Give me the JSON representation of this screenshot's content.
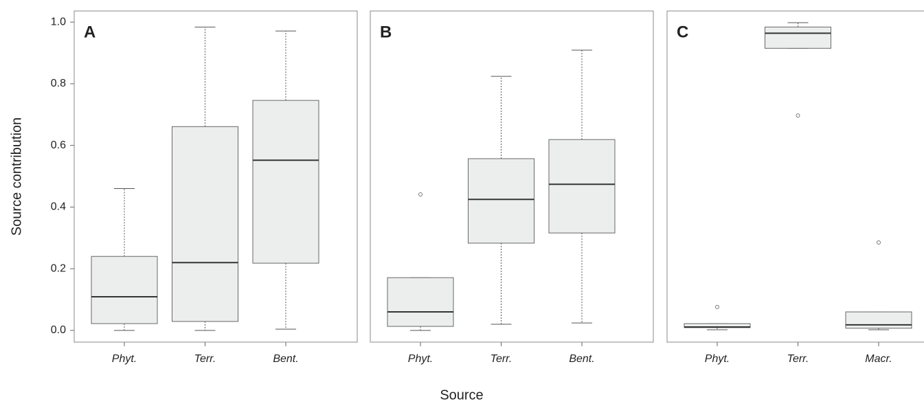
{
  "chart_data": [
    {
      "type": "box",
      "panel": "A",
      "ylabel": "Source contribution",
      "categories": [
        "Phyt.",
        "Terr.",
        "Bent."
      ],
      "boxes": [
        {
          "min": 0.0,
          "q1": 0.022,
          "median": 0.109,
          "q3": 0.24,
          "max": 0.46,
          "outliers": []
        },
        {
          "min": 0.0,
          "q1": 0.029,
          "median": 0.22,
          "q3": 0.661,
          "max": 0.984,
          "outliers": []
        },
        {
          "min": 0.004,
          "q1": 0.218,
          "median": 0.552,
          "q3": 0.746,
          "max": 0.971,
          "outliers": []
        }
      ],
      "ylim": [
        -0.038,
        1.036
      ],
      "yticks": [
        {
          "value": 0,
          "label": "0.0"
        },
        0.2,
        0.4,
        0.6,
        0.8,
        {
          "value": 1,
          "label": "1.0"
        }
      ]
    },
    {
      "type": "box",
      "panel": "B",
      "xlabel": "Source",
      "categories": [
        "Phyt.",
        "Terr.",
        "Bent."
      ],
      "boxes": [
        {
          "min": 0.0,
          "q1": 0.013,
          "median": 0.06,
          "q3": 0.171,
          "max": 0.171,
          "outliers": [
            0.441
          ]
        },
        {
          "min": 0.02,
          "q1": 0.283,
          "median": 0.425,
          "q3": 0.557,
          "max": 0.824,
          "outliers": []
        },
        {
          "min": 0.024,
          "q1": 0.316,
          "median": 0.474,
          "q3": 0.619,
          "max": 0.909,
          "outliers": []
        }
      ],
      "ylim": [
        -0.038,
        1.036
      ]
    },
    {
      "type": "box",
      "panel": "C",
      "categories": [
        "Phyt.",
        "Terr.",
        "Macr."
      ],
      "boxes": [
        {
          "min": 0.002,
          "q1": 0.009,
          "median": 0.011,
          "q3": 0.022,
          "max": 0.022,
          "outliers": [
            0.076
          ]
        },
        {
          "min": 0.915,
          "q1": 0.915,
          "median": 0.964,
          "q3": 0.984,
          "max": 0.998,
          "outliers": [
            0.697
          ]
        },
        {
          "min": 0.002,
          "q1": 0.007,
          "median": 0.018,
          "q3": 0.06,
          "max": 0.06,
          "outliers": [
            0.285
          ]
        }
      ],
      "ylim": [
        -0.038,
        1.036
      ]
    }
  ]
}
